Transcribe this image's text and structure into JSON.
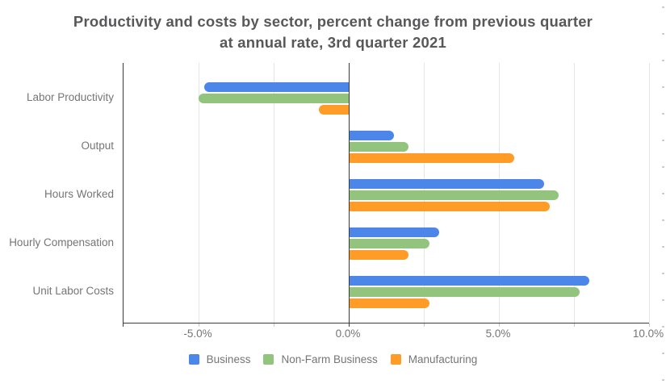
{
  "title": {
    "line1": "Productivity and costs by sector, percent change from previous quarter",
    "line2": "at annual rate, 3rd quarter 2021"
  },
  "colors": {
    "background": "#ffffff",
    "title_text": "#58585a",
    "axis_text": "#757575",
    "axis_line": "#3a3a3a",
    "gridline": "#e6e6e6",
    "edge_tick": "#c4c4c4"
  },
  "chart_data": {
    "type": "bar",
    "orientation": "horizontal",
    "title": "Productivity and costs by sector, percent change from previous quarter at annual rate, 3rd quarter 2021",
    "categories": [
      "Labor Productivity",
      "Output",
      "Hours Worked",
      "Hourly Compensation",
      "Unit Labor Costs"
    ],
    "series": [
      {
        "name": "Business",
        "color": "#4c86e8",
        "values": [
          -4.8,
          1.5,
          6.5,
          3.0,
          8.0
        ]
      },
      {
        "name": "Non-Farm Business",
        "color": "#93c47d",
        "values": [
          -5.0,
          2.0,
          7.0,
          2.7,
          7.7
        ]
      },
      {
        "name": "Manufacturing",
        "color": "#ff9b27",
        "values": [
          -1.0,
          5.5,
          6.7,
          2.0,
          2.7
        ]
      }
    ],
    "xlabel": "",
    "ylabel": "",
    "xlim": [
      -7.5,
      10
    ],
    "gridline_step": 2.5,
    "grid": true,
    "xticks": [
      {
        "value": -5,
        "label": "-5.0%"
      },
      {
        "value": 0,
        "label": "0.0%"
      },
      {
        "value": 5,
        "label": "5.0%"
      },
      {
        "value": 10,
        "label": "10.0%"
      }
    ],
    "legend_position": "bottom"
  }
}
